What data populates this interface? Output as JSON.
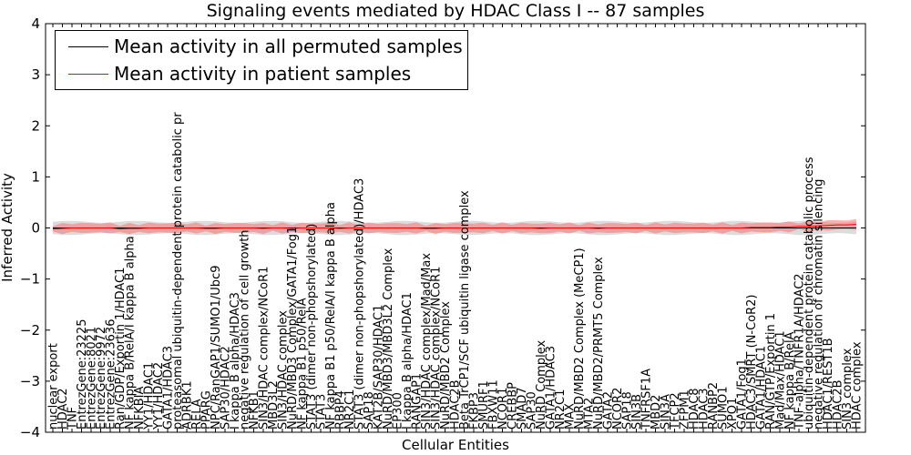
{
  "chart_data": {
    "type": "line",
    "title": "Signaling events mediated by HDAC Class I -- 87 samples",
    "xlabel": "Cellular Entities",
    "ylabel": "Inferred Activity",
    "ylim": [
      -4,
      4
    ],
    "yticks": [
      "4",
      "3",
      "2",
      "1",
      "0",
      "−1",
      "−2",
      "−3",
      "−4"
    ],
    "legend": {
      "placement": "top-left",
      "entries": [
        {
          "label": "Mean activity in all permuted samples",
          "color": "#000000"
        },
        {
          "label": "Mean activity in patient samples",
          "color": "#ff0000"
        }
      ]
    },
    "categories": [
      "nuclear export",
      "HDAC2",
      "TNF",
      "EntrezGene:23225",
      "EntrezGene:8021",
      "EntrezGene:9972",
      "EntrezGene:23636",
      "Ran/GDP/Exportin 1/HDAC1",
      "NF kappa B/RelA/I kappa B alpha",
      "NFKBIA",
      "YY1/HDAC1",
      "YY1/HDAC2",
      "GATA1/HDAC3",
      "proteasomal ubiquitin-dependent protein catabolic pr",
      "ADRBK1",
      "RELA",
      "PPARG",
      "NPC/RanGAP1/SUMO1/Ubc9",
      "SAP30/HDAC2",
      "I kappa B alpha/HDAC3",
      "negative regulation of cell growth",
      "NFKB1",
      "SIN3/HDAC complex/NCoR1",
      "MBD3L2",
      "SIN3/HDAC complex",
      "NuRD/MBD3 Complex/GATA1/Fog1",
      "NF kappa B1 p50/RelA",
      "STAT3 (dimer non-phopshorylated)",
      "STAT3",
      "NF kappa B1 p50/RelA/I kappa B alpha",
      "RBBP4",
      "NR2C1",
      "STAT3 (dimer non-phopshorylated)/HDAC3",
      "SAP18",
      "KAT2B/SAP30/HDAC1",
      "NuRD/MBD3/MBD3L2 Complex",
      "EP300",
      "I kappa B alpha/HDAC1",
      "RANGAP1",
      "SIN3/HDAC complex/Mad/Max",
      "SIN3/HDAC complex/NCoR1",
      "NuRD/MBD2 Complex",
      "HDAC2B",
      "Beta TrCP1/SCF ubiquitin ligase complex",
      "FKBP3",
      "SMURF1",
      "FBXW11",
      "NCOR1",
      "CREBBP",
      "SMAD7",
      "SAP30",
      "NuRD Complex",
      "GATA1/HDAC3",
      "NR2C1",
      "MAX",
      "NuRD/MBD2 Complex (MeCP1)",
      "MTA2",
      "NuRD/MBD2/PRMT5 Complex",
      "GATA2",
      "NCOR2",
      "SAP18",
      "SIN3B",
      "TNFRSF1A",
      "MBD2",
      "SIN3A",
      "TFCP2",
      "ZFPM1",
      "HDAC8",
      "HDAC3",
      "RANBP2",
      "SUMO1",
      "XPO1",
      "GATA1/Fog1",
      "HDAC3/SMRT (N-CoR2)",
      "GATA1/HDAC1",
      "RAN/GTP/Exportin 1",
      "Mad/Max/HDAC1",
      "NF kappa B/RelA",
      "TNF-alpha/TNFR1A/HDAC2",
      "ubiquitin-dependent protein catabolic process",
      "negative regulation of chromatin silencing",
      "HDAC1/REST1B",
      "HDAC2B",
      "SIN3 complex",
      "HDAC complex"
    ],
    "series": [
      {
        "name": "Mean activity in all permuted samples",
        "color": "#000000",
        "values": [
          0,
          0,
          0,
          0,
          0,
          0,
          0,
          0,
          0,
          0,
          0,
          0,
          0,
          0,
          0,
          0,
          0,
          0,
          0,
          0,
          0,
          0,
          0,
          0,
          0,
          0,
          0,
          0,
          0,
          0,
          0,
          0,
          0,
          0,
          0,
          0,
          0,
          0,
          0,
          0,
          0,
          0,
          0,
          0,
          0,
          0,
          0,
          0,
          0,
          0,
          0,
          0,
          0,
          0,
          0,
          0,
          0,
          0,
          0,
          0,
          0,
          0,
          0,
          0,
          0,
          0,
          0,
          0,
          0,
          0,
          0,
          0,
          0,
          0,
          0,
          0,
          0,
          0,
          0,
          0,
          0,
          0,
          0,
          0,
          0
        ]
      },
      {
        "name": "Mean activity in patient samples",
        "color": "#ff0000",
        "values": [
          -0.02,
          -0.01,
          0,
          0,
          0,
          0,
          0,
          -0.02,
          -0.01,
          -0.01,
          0,
          0,
          0,
          0,
          0,
          0,
          -0.01,
          -0.01,
          0,
          0,
          0,
          0,
          -0.01,
          0,
          0,
          -0.01,
          0,
          0,
          0,
          0,
          -0.01,
          0,
          0,
          0,
          0,
          0,
          0,
          0,
          0,
          -0.01,
          -0.01,
          0,
          0,
          0,
          0,
          0,
          0,
          0,
          0,
          0,
          0,
          -0.01,
          0,
          0,
          0,
          0,
          0,
          -0.01,
          0,
          0,
          0,
          0,
          0,
          0,
          0,
          0,
          0,
          0,
          0,
          0,
          0,
          0,
          0,
          0.01,
          0.01,
          0.01,
          0.02,
          0.02,
          0.03,
          0.03,
          0.04,
          0.05,
          0.06,
          0.06,
          0.07
        ]
      }
    ]
  }
}
